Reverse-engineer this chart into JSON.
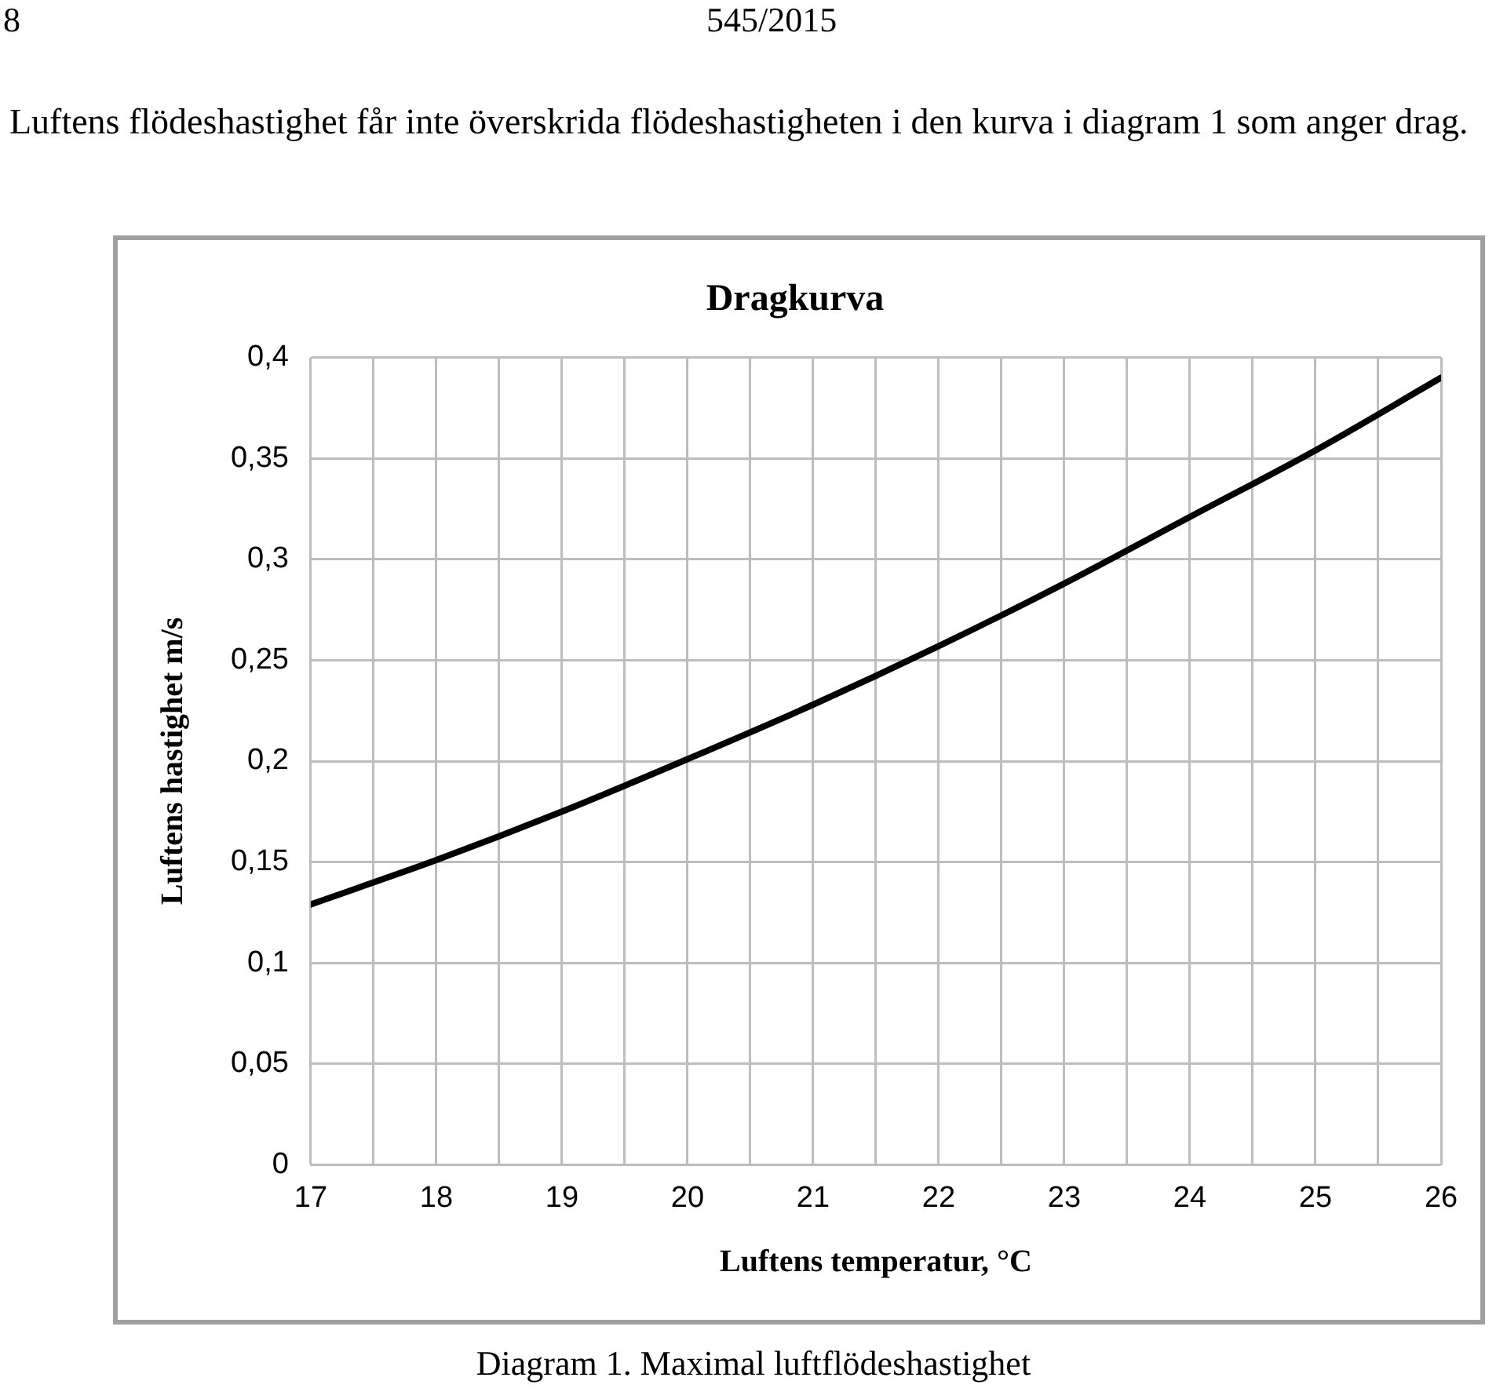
{
  "chart_data": {
    "type": "line",
    "title": "Dragkurva",
    "xlabel": "Luftens temperatur, °C",
    "ylabel": "Luftens hastighet m/s",
    "annotations": [
      "8",
      "545/2015",
      "Luftens flödeshastighet får inte överskrida flödeshastigheten i den kurva i diagram 1 som anger drag.",
      "Diagram 1. Maximal luftflödeshastighet"
    ],
    "x": [
      17,
      18,
      19,
      20,
      21,
      22,
      23,
      24,
      25,
      26
    ],
    "series": [
      {
        "color": "#000000",
        "values": [
          0.129,
          0.151,
          0.175,
          0.201,
          0.228,
          0.257,
          0.288,
          0.321,
          0.354,
          0.39
        ]
      }
    ],
    "xlim": [
      17,
      26
    ],
    "xticks": [
      17,
      {
        "value": 17.5,
        "label": null
      },
      18,
      {
        "value": 18.5,
        "label": null
      },
      19,
      {
        "value": 19.5,
        "label": null
      },
      20,
      {
        "value": 20.5,
        "label": null
      },
      21,
      {
        "value": 21.5,
        "label": null
      },
      22,
      {
        "value": 22.5,
        "label": null
      },
      23,
      {
        "value": 23.5,
        "label": null
      },
      24,
      {
        "value": 24.5,
        "label": null
      },
      25,
      {
        "value": 25.5,
        "label": null
      },
      26
    ],
    "ylim": [
      0,
      0.4
    ],
    "yticks": [
      0,
      {
        "value": 0.05,
        "label": "0,05"
      },
      {
        "value": 0.1,
        "label": "0,1"
      },
      {
        "value": 0.15,
        "label": "0,15"
      },
      {
        "value": 0.2,
        "label": "0,2"
      },
      {
        "value": 0.25,
        "label": "0,25"
      },
      {
        "value": 0.3,
        "label": "0,3"
      },
      {
        "value": 0.35,
        "label": "0,35"
      },
      {
        "value": 0.4,
        "label": "0,4"
      }
    ],
    "grid": true,
    "legend": false,
    "marker": "none",
    "line_style": "solid"
  }
}
